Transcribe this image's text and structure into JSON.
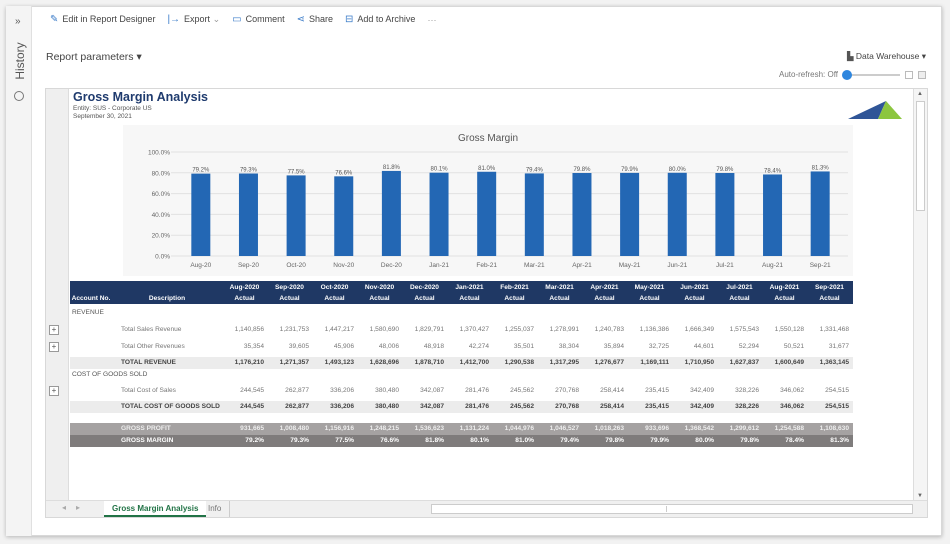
{
  "sidebar": {
    "collapse_icon": "double-chevron-right",
    "label": "History",
    "history_icon": "clock-icon"
  },
  "toolbar": {
    "items": [
      {
        "label": "Edit in Report Designer",
        "icon": "pencil-icon"
      },
      {
        "label": "Export",
        "icon": "export-icon"
      },
      {
        "label": "Comment",
        "icon": "comment-icon"
      },
      {
        "label": "Share",
        "icon": "share-icon"
      },
      {
        "label": "Add to Archive",
        "icon": "archive-icon"
      }
    ],
    "more": "···"
  },
  "params": {
    "label": "Report parameters ▾"
  },
  "datasource": {
    "label": "Data Warehouse ▾"
  },
  "autorefresh": {
    "label": "Auto-refresh: Off",
    "enabled": false
  },
  "report": {
    "title": "Gross Margin Analysis",
    "entity": "Entity: SUS - Corporate US",
    "date": "September 30, 2021"
  },
  "colors": {
    "bar": "#2367b4",
    "header": "#1f3864",
    "accent": "#217346"
  },
  "chart_data": {
    "type": "bar",
    "title": "Gross Margin",
    "categories": [
      "Aug-20",
      "Sep-20",
      "Oct-20",
      "Nov-20",
      "Dec-20",
      "Jan-21",
      "Feb-21",
      "Mar-21",
      "Apr-21",
      "May-21",
      "Jun-21",
      "Jul-21",
      "Aug-21",
      "Sep-21"
    ],
    "values": [
      79.2,
      79.3,
      77.5,
      76.6,
      81.8,
      80.1,
      81.0,
      79.4,
      79.8,
      79.9,
      80.0,
      79.8,
      78.4,
      81.3
    ],
    "labels": [
      "79.2%",
      "79.3%",
      "77.5%",
      "76.6%",
      "81.8%",
      "80.1%",
      "81.0%",
      "79.4%",
      "79.8%",
      "79.9%",
      "80.0%",
      "79.8%",
      "78.4%",
      "81.3%"
    ],
    "yticks": [
      "0.0%",
      "20.0%",
      "40.0%",
      "60.0%",
      "80.0%",
      "100.0%"
    ],
    "ylim": [
      0,
      100
    ],
    "grid": true
  },
  "table": {
    "col_account": "Account No.",
    "col_desc": "Description",
    "months": [
      "Aug-2020",
      "Sep-2020",
      "Oct-2020",
      "Nov-2020",
      "Dec-2020",
      "Jan-2021",
      "Feb-2021",
      "Mar-2021",
      "Apr-2021",
      "May-2021",
      "Jun-2021",
      "Jul-2021",
      "Aug-2021",
      "Sep-2021"
    ],
    "scenario": "Actual",
    "rows": [
      {
        "type": "sec",
        "label": "REVENUE"
      },
      {
        "type": "norm",
        "label": "Total Sales Revenue",
        "expand": true,
        "values": [
          "1,140,856",
          "1,231,753",
          "1,447,217",
          "1,580,690",
          "1,829,791",
          "1,370,427",
          "1,255,037",
          "1,278,991",
          "1,240,783",
          "1,136,386",
          "1,666,349",
          "1,575,543",
          "1,550,128",
          "1,331,468"
        ]
      },
      {
        "type": "norm",
        "label": "Total Other Revenues",
        "expand": true,
        "values": [
          "35,354",
          "39,605",
          "45,906",
          "48,006",
          "48,918",
          "42,274",
          "35,501",
          "38,304",
          "35,894",
          "32,725",
          "44,601",
          "52,294",
          "50,521",
          "31,677"
        ]
      },
      {
        "type": "grey",
        "label": "TOTAL REVENUE",
        "values": [
          "1,176,210",
          "1,271,357",
          "1,493,123",
          "1,628,696",
          "1,878,710",
          "1,412,700",
          "1,290,538",
          "1,317,295",
          "1,276,677",
          "1,169,111",
          "1,710,950",
          "1,627,837",
          "1,600,649",
          "1,363,145"
        ]
      },
      {
        "type": "sec",
        "label": "COST OF GOODS SOLD"
      },
      {
        "type": "norm",
        "label": "Total Cost of Sales",
        "expand": true,
        "values": [
          "244,545",
          "262,877",
          "336,206",
          "380,480",
          "342,087",
          "281,476",
          "245,562",
          "270,768",
          "258,414",
          "235,415",
          "342,409",
          "328,226",
          "346,062",
          "254,515"
        ]
      },
      {
        "type": "grey",
        "label": "TOTAL COST OF GOODS SOLD",
        "values": [
          "244,545",
          "262,877",
          "336,206",
          "380,480",
          "342,087",
          "281,476",
          "245,562",
          "270,768",
          "258,414",
          "235,415",
          "342,409",
          "328,226",
          "346,062",
          "254,515"
        ]
      },
      {
        "type": "gp",
        "label": "GROSS PROFIT",
        "values": [
          "931,665",
          "1,008,480",
          "1,156,916",
          "1,248,215",
          "1,536,623",
          "1,131,224",
          "1,044,976",
          "1,046,527",
          "1,018,263",
          "933,696",
          "1,368,542",
          "1,299,612",
          "1,254,588",
          "1,108,630"
        ]
      },
      {
        "type": "gm",
        "label": "GROSS MARGIN",
        "values": [
          "79.2%",
          "79.3%",
          "77.5%",
          "76.6%",
          "81.8%",
          "80.1%",
          "81.0%",
          "79.4%",
          "79.8%",
          "79.9%",
          "80.0%",
          "79.8%",
          "78.4%",
          "81.3%"
        ]
      }
    ]
  },
  "sheets": {
    "tabs": [
      "Gross Margin Analysis",
      "Info"
    ],
    "active": "Gross Margin Analysis"
  }
}
